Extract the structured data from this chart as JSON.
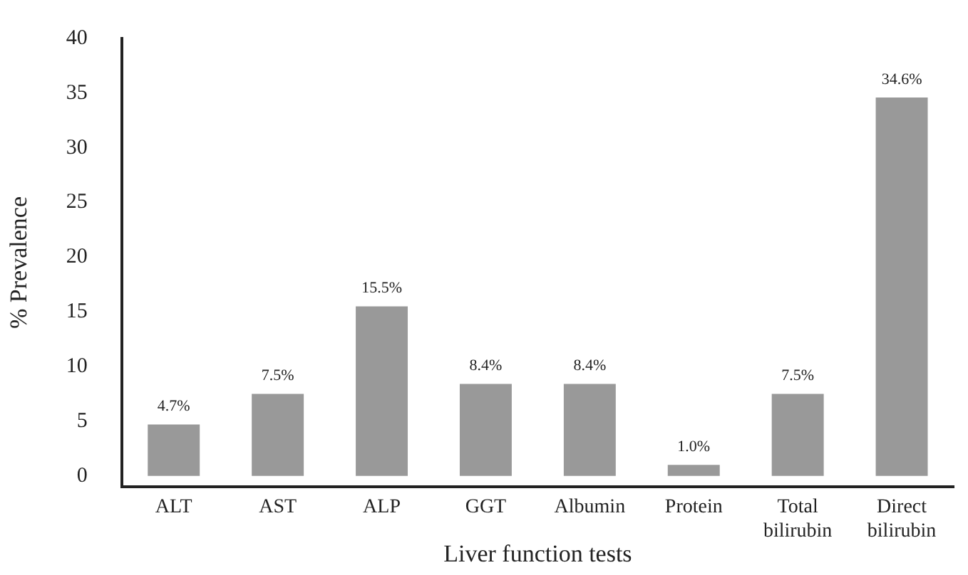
{
  "chart_data": {
    "type": "bar",
    "xlabel": "Liver function tests",
    "ylabel": "% Prevalence",
    "categories": [
      "ALT",
      "AST",
      "ALP",
      "GGT",
      "Albumin",
      "Protein",
      "Total bilirubin",
      "Direct bilirubin"
    ],
    "values": [
      4.7,
      7.5,
      15.5,
      8.4,
      8.4,
      1.0,
      7.5,
      34.6
    ],
    "value_labels": [
      "4.7%",
      "7.5%",
      "15.5%",
      "8.4%",
      "8.4%",
      "1.0%",
      "7.5%",
      "34.6%"
    ],
    "color": "#999999",
    "ylim": [
      -1,
      40
    ],
    "yticks": [
      0,
      5,
      10,
      15,
      20,
      25,
      30,
      35,
      40
    ],
    "grid": false,
    "legend": false
  }
}
